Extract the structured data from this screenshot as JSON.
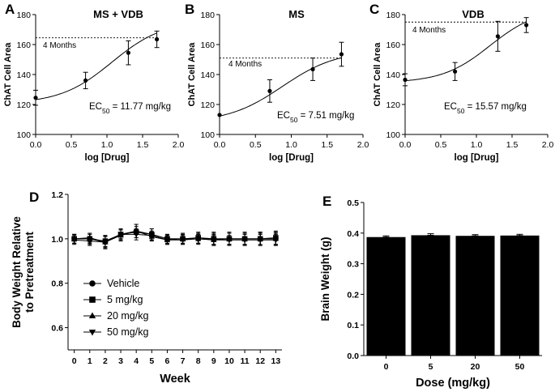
{
  "chart_data": [
    {
      "id": "A",
      "type": "scatter",
      "panel_label": "A",
      "title": "MS + VDB",
      "xlabel": "log [Drug]",
      "ylabel": "ChAT Cell Area",
      "xlim": [
        0,
        2.0
      ],
      "ylim": [
        100,
        180
      ],
      "xticks": [
        "0.0",
        "0.5",
        "1.0",
        "1.5",
        "2.0"
      ],
      "yticks": [
        "100",
        "120",
        "140",
        "160",
        "180"
      ],
      "points": [
        {
          "x": 0.0,
          "y": 124.5,
          "err": 5
        },
        {
          "x": 0.7,
          "y": 136,
          "err": 5.5
        },
        {
          "x": 1.3,
          "y": 154.5,
          "err": 8
        },
        {
          "x": 1.7,
          "y": 163.5,
          "err": 5.5
        }
      ],
      "fit": {
        "bottom": 120.5,
        "top": 176,
        "log_ec50": 1.07,
        "hill": 1.2,
        "x_end": 1.7
      },
      "reference": {
        "y": 164.5,
        "label": "4 Months"
      },
      "ec50_prefix": "EC",
      "ec50_sub": "50",
      "ec50_suffix": " = 11.77 mg/kg"
    },
    {
      "id": "B",
      "type": "scatter",
      "panel_label": "B",
      "title": "MS",
      "xlabel": "log [Drug]",
      "ylabel": "ChAT Cell Area",
      "xlim": [
        0,
        2.0
      ],
      "ylim": [
        100,
        180
      ],
      "xticks": [
        "0.0",
        "0.5",
        "1.0",
        "1.5",
        "2.0"
      ],
      "yticks": [
        "100",
        "120",
        "140",
        "160",
        "180"
      ],
      "points": [
        {
          "x": 0.0,
          "y": 113,
          "err": 0
        },
        {
          "x": 0.7,
          "y": 129,
          "err": 7.5
        },
        {
          "x": 1.3,
          "y": 143.5,
          "err": 7.5
        },
        {
          "x": 1.7,
          "y": 153.5,
          "err": 8
        }
      ],
      "fit": {
        "bottom": 108,
        "top": 156,
        "log_ec50": 0.875,
        "hill": 1.15,
        "x_end": 1.7
      },
      "reference": {
        "y": 151,
        "label": "4 Months"
      },
      "ec50_prefix": "EC",
      "ec50_sub": "50",
      "ec50_suffix": " = 7.51 mg/kg"
    },
    {
      "id": "C",
      "type": "scatter",
      "panel_label": "C",
      "title": "VDB",
      "xlabel": "log [Drug]",
      "ylabel": "ChAT Cell Area",
      "xlim": [
        0,
        2.0
      ],
      "ylim": [
        100,
        180
      ],
      "xticks": [
        "0.0",
        "0.5",
        "1.0",
        "1.5",
        "2.0"
      ],
      "yticks": [
        "100",
        "120",
        "140",
        "160",
        "180"
      ],
      "points": [
        {
          "x": 0.0,
          "y": 136.5,
          "err": 4
        },
        {
          "x": 0.7,
          "y": 142,
          "err": 6
        },
        {
          "x": 1.3,
          "y": 165.5,
          "err": 10
        },
        {
          "x": 1.7,
          "y": 173,
          "err": 5
        }
      ],
      "fit": {
        "bottom": 134.5,
        "top": 184,
        "log_ec50": 1.19,
        "hill": 1.3,
        "x_end": 1.7
      },
      "reference": {
        "y": 175,
        "label": "4 Months"
      },
      "ec50_prefix": "EC",
      "ec50_sub": "50",
      "ec50_suffix": " = 15.57 mg/kg"
    },
    {
      "id": "D",
      "type": "line",
      "panel_label": "D",
      "xlabel": "Week",
      "ylabel_line1": "Body Weight Relative",
      "ylabel_line2": "to Pretreatment",
      "xlim": [
        -0.4,
        13.4
      ],
      "ylim": [
        0.5,
        1.2
      ],
      "xticks": [
        "0",
        "1",
        "2",
        "3",
        "4",
        "5",
        "6",
        "7",
        "8",
        "9",
        "10",
        "11",
        "12",
        "13"
      ],
      "yticks": [
        "0.6",
        "0.8",
        "1.0",
        "1.2"
      ],
      "x": [
        0,
        1,
        2,
        3,
        4,
        5,
        6,
        7,
        8,
        9,
        10,
        11,
        12,
        13
      ],
      "series": [
        {
          "name": "Vehicle",
          "marker": "circle",
          "values": [
            1.0,
            1.0,
            0.985,
            1.02,
            1.035,
            1.02,
            1.0,
            1.0,
            1.0,
            1.0,
            1.0,
            1.0,
            1.0,
            1.0
          ],
          "errors": [
            0.02,
            0.025,
            0.03,
            0.025,
            0.03,
            0.025,
            0.02,
            0.025,
            0.025,
            0.03,
            0.03,
            0.03,
            0.03,
            0.03
          ]
        },
        {
          "name": "5 mg/kg",
          "marker": "square",
          "values": [
            1.0,
            1.0,
            0.99,
            1.02,
            1.03,
            1.02,
            1.0,
            1.0,
            1.005,
            1.0,
            1.0,
            1.0,
            1.0,
            1.005
          ],
          "errors": [
            0.02,
            0.02,
            0.025,
            0.02,
            0.025,
            0.025,
            0.02,
            0.02,
            0.025,
            0.025,
            0.025,
            0.025,
            0.03,
            0.03
          ]
        },
        {
          "name": "20 mg/kg",
          "marker": "triangle-up",
          "values": [
            1.0,
            1.005,
            0.985,
            1.015,
            1.035,
            1.01,
            0.995,
            1.0,
            1.0,
            0.995,
            1.0,
            1.0,
            1.0,
            1.0
          ],
          "errors": [
            0.02,
            0.02,
            0.025,
            0.025,
            0.03,
            0.02,
            0.02,
            0.02,
            0.02,
            0.025,
            0.025,
            0.025,
            0.025,
            0.025
          ]
        },
        {
          "name": "50 mg/kg",
          "marker": "triangle-down",
          "values": [
            0.995,
            0.99,
            0.985,
            1.02,
            1.02,
            1.015,
            0.995,
            0.995,
            1.0,
            0.995,
            0.995,
            0.995,
            0.995,
            0.995
          ],
          "errors": [
            0.02,
            0.02,
            0.025,
            0.02,
            0.025,
            0.02,
            0.02,
            0.02,
            0.02,
            0.02,
            0.02,
            0.025,
            0.025,
            0.025
          ]
        }
      ]
    },
    {
      "id": "E",
      "type": "bar",
      "panel_label": "E",
      "xlabel": "Dose (mg/kg)",
      "ylabel": "Brain Weight (g)",
      "ylim": [
        0.0,
        0.5
      ],
      "yticks": [
        "0.0",
        "0.1",
        "0.2",
        "0.3",
        "0.4",
        "0.5"
      ],
      "categories": [
        "0",
        "5",
        "20",
        "50"
      ],
      "values": [
        0.387,
        0.393,
        0.391,
        0.392
      ],
      "errors": [
        0.004,
        0.005,
        0.004,
        0.004
      ]
    }
  ]
}
